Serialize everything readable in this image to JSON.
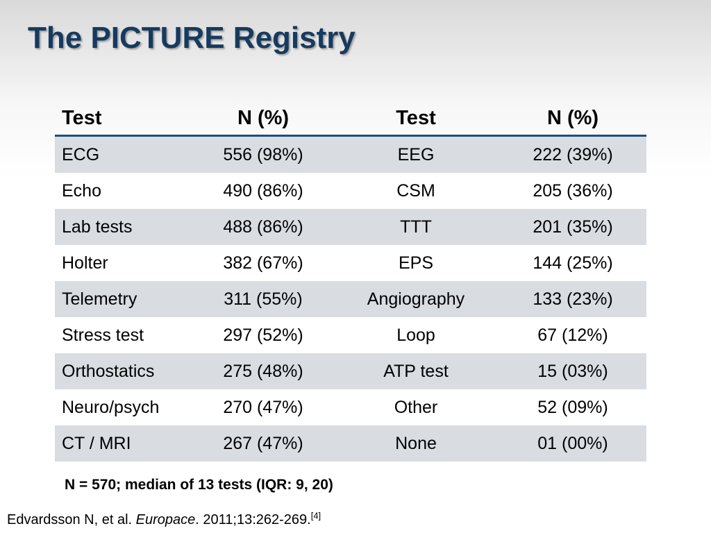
{
  "slide": {
    "title": "The PICTURE Registry"
  },
  "table": {
    "headers": [
      "Test",
      "N (%)",
      "Test",
      "N (%)"
    ],
    "rows": [
      [
        "ECG",
        "556 (98%)",
        "EEG",
        "222 (39%)"
      ],
      [
        "Echo",
        "490 (86%)",
        "CSM",
        "205 (36%)"
      ],
      [
        "Lab tests",
        "488 (86%)",
        "TTT",
        "201 (35%)"
      ],
      [
        "Holter",
        "382 (67%)",
        "EPS",
        "144 (25%)"
      ],
      [
        "Telemetry",
        "311 (55%)",
        "Angiography",
        "133 (23%)"
      ],
      [
        "Stress test",
        "297 (52%)",
        "Loop",
        "67 (12%)"
      ],
      [
        "Orthostatics",
        "275 (48%)",
        "ATP test",
        "15 (03%)"
      ],
      [
        "Neuro/psych",
        "270 (47%)",
        "Other",
        "52 (09%)"
      ],
      [
        "CT / MRI",
        "267 (47%)",
        "None",
        "01 (00%)"
      ]
    ]
  },
  "summary": "N = 570; median of 13 tests (IQR: 9, 20)",
  "citation": {
    "authors": "Edvardsson N, et al. ",
    "journal": "Europace",
    "details": ". 2011;13:262-269.",
    "ref": "[4]"
  },
  "colors": {
    "title": "#173a5e",
    "row_stripe": "#d9dde1",
    "header_rule": "#1f4e79"
  }
}
